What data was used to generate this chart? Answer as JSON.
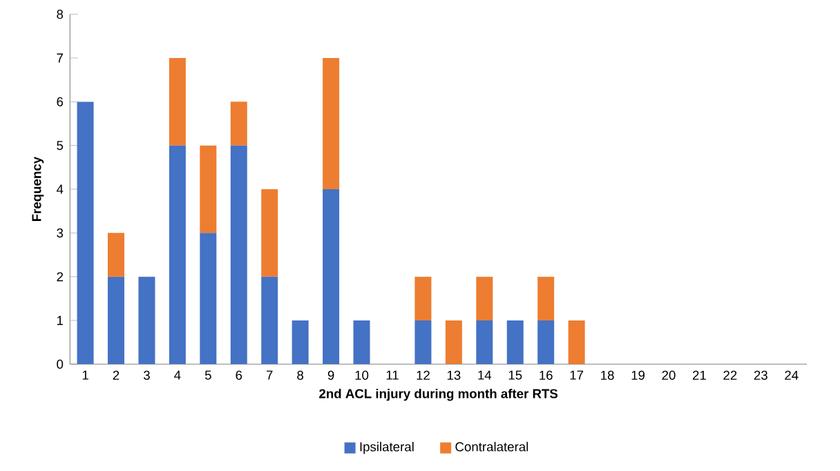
{
  "chart_data": {
    "type": "bar",
    "stacked": true,
    "xlabel": "2nd ACL injury during month after RTS",
    "ylabel": "Frequency",
    "categories": [
      "1",
      "2",
      "3",
      "4",
      "5",
      "6",
      "7",
      "8",
      "9",
      "10",
      "11",
      "12",
      "13",
      "14",
      "15",
      "16",
      "17",
      "18",
      "19",
      "20",
      "21",
      "22",
      "23",
      "24"
    ],
    "series": [
      {
        "name": "Ipsilateral",
        "color": "#4472c4",
        "values": [
          6,
          2,
          2,
          5,
          3,
          5,
          2,
          1,
          4,
          1,
          0,
          1,
          0,
          1,
          1,
          1,
          0,
          0,
          0,
          0,
          0,
          0,
          0,
          0
        ]
      },
      {
        "name": "Contralateral",
        "color": "#ed7d31",
        "values": [
          0,
          1,
          0,
          2,
          2,
          1,
          2,
          0,
          3,
          0,
          0,
          1,
          1,
          1,
          0,
          1,
          1,
          0,
          0,
          0,
          0,
          0,
          0,
          0
        ]
      }
    ],
    "ylim": [
      0,
      8
    ],
    "yticks": [
      0,
      1,
      2,
      3,
      4,
      5,
      6,
      7,
      8
    ],
    "grid": false,
    "legend": "bottom"
  }
}
